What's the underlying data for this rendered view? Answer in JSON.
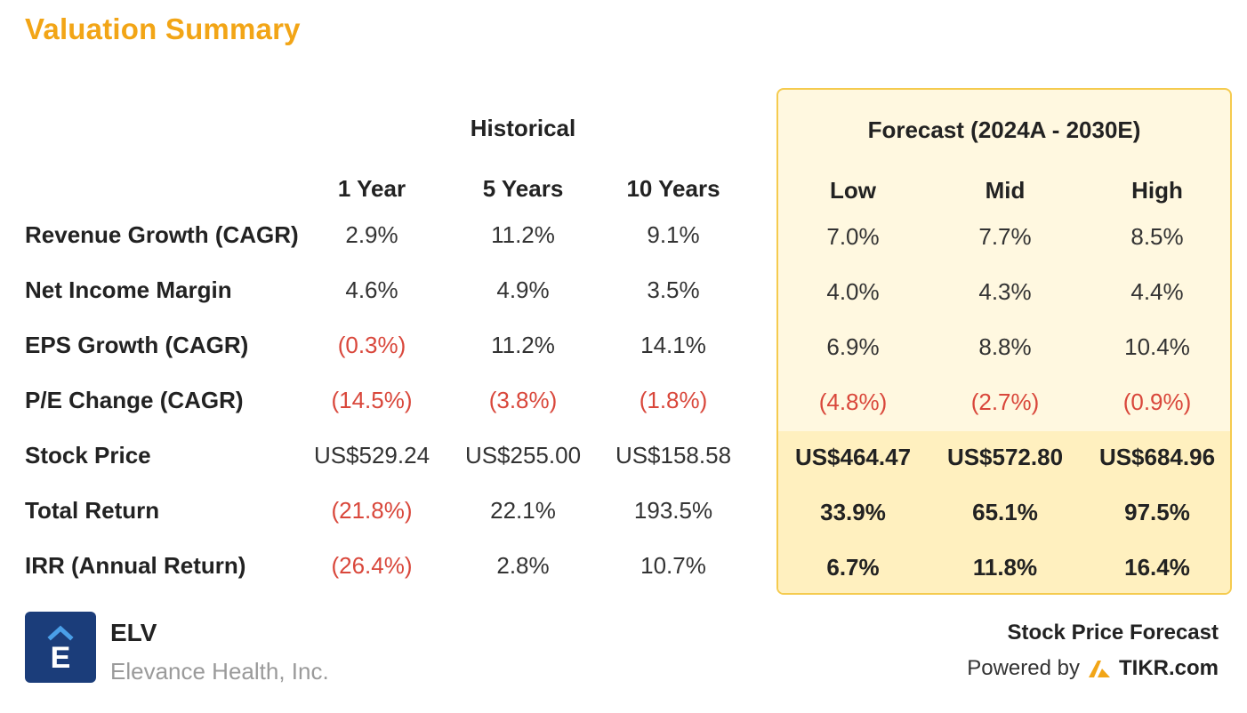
{
  "title": "Valuation Summary",
  "historical": {
    "label": "Historical",
    "columns": [
      "1 Year",
      "5 Years",
      "10 Years"
    ]
  },
  "forecast": {
    "label": "Forecast (2024A - 2030E)",
    "columns": [
      "Low",
      "Mid",
      "High"
    ]
  },
  "rows": [
    {
      "label": "Revenue Growth (CAGR)",
      "historical": [
        "2.9%",
        "11.2%",
        "9.1%"
      ],
      "forecast": [
        "7.0%",
        "7.7%",
        "8.5%"
      ]
    },
    {
      "label": "Net Income Margin",
      "historical": [
        "4.6%",
        "4.9%",
        "3.5%"
      ],
      "forecast": [
        "4.0%",
        "4.3%",
        "4.4%"
      ]
    },
    {
      "label": "EPS Growth (CAGR)",
      "historical": [
        "(0.3%)",
        "11.2%",
        "14.1%"
      ],
      "forecast": [
        "6.9%",
        "8.8%",
        "10.4%"
      ]
    },
    {
      "label": "P/E Change (CAGR)",
      "historical": [
        "(14.5%)",
        "(3.8%)",
        "(1.8%)"
      ],
      "forecast": [
        "(4.8%)",
        "(2.7%)",
        "(0.9%)"
      ]
    },
    {
      "label": "Stock Price",
      "historical": [
        "US$529.24",
        "US$255.00",
        "US$158.58"
      ],
      "forecast": [
        "US$464.47",
        "US$572.80",
        "US$684.96"
      ]
    },
    {
      "label": "Total Return",
      "historical": [
        "(21.8%)",
        "22.1%",
        "193.5%"
      ],
      "forecast": [
        "33.9%",
        "65.1%",
        "97.5%"
      ]
    },
    {
      "label": "IRR (Annual Return)",
      "historical": [
        "(26.4%)",
        "2.8%",
        "10.7%"
      ],
      "forecast": [
        "6.7%",
        "11.8%",
        "16.4%"
      ]
    }
  ],
  "colors": {
    "title": "#F2A516",
    "negative": "#D9473B",
    "forecast_bg": "#FFF8E0",
    "forecast_border": "#F5CB4F",
    "logo_bg": "#1B3D7A",
    "logo_accent": "#4A9FE8",
    "tikr_logo": "#F2A516"
  },
  "company": {
    "ticker": "ELV",
    "name": "Elevance Health, Inc.",
    "logo_letter": "E"
  },
  "footer": {
    "label": "Stock Price Forecast",
    "powered_by": "Powered by",
    "brand": "TIKR.com",
    "brand_icon": "tikr-logo-icon"
  }
}
